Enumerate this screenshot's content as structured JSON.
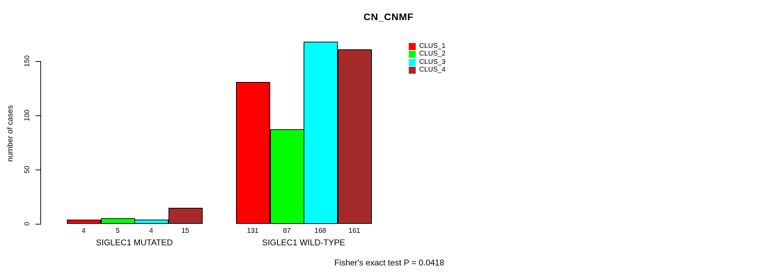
{
  "chart": {
    "title": "CN_CNMF",
    "ylabel": "number of cases",
    "footer": "Fisher's exact test P = 0.0418"
  },
  "chart_data": {
    "type": "bar",
    "title": "CN_CNMF",
    "xlabel": "",
    "ylabel": "number of cases",
    "categories": [
      "SIGLEC1 MUTATED",
      "SIGLEC1 WILD-TYPE"
    ],
    "series": [
      {
        "name": "CLUS_1",
        "color": "#FF0000",
        "values": [
          4,
          131
        ]
      },
      {
        "name": "CLUS_2",
        "color": "#00FF00",
        "values": [
          5,
          87
        ]
      },
      {
        "name": "CLUS_3",
        "color": "#00FFFF",
        "values": [
          4,
          168
        ]
      },
      {
        "name": "CLUS_4",
        "color": "#A52A2A",
        "values": [
          15,
          161
        ]
      }
    ],
    "bar_value_labels": [
      [
        4,
        5,
        4,
        15
      ],
      [
        131,
        87,
        168,
        161
      ]
    ],
    "yticks": [
      0,
      50,
      100,
      150
    ],
    "ylim": [
      0,
      168
    ],
    "grid": false,
    "legend_position": "top-right",
    "legend_entries": [
      "CLUS_1",
      "CLUS_2",
      "CLUS_3",
      "CLUS_4"
    ],
    "annotation": "Fisher's exact test P = 0.0418"
  }
}
